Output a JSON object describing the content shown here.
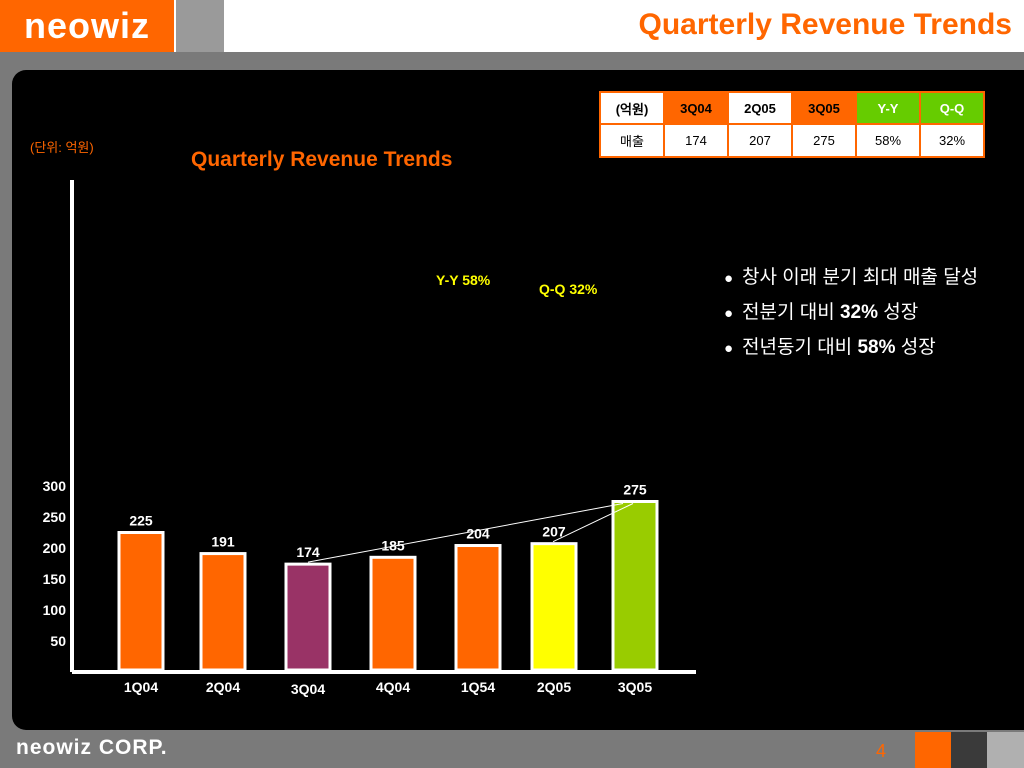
{
  "header": {
    "logo": "neowiz",
    "title": "Quarterly Revenue Trends"
  },
  "footer": {
    "logo": "neowiz CORP.",
    "page": "4"
  },
  "chart_data": {
    "type": "bar",
    "title": "Quarterly Revenue Trends",
    "unit_label": "(단위: 억원)",
    "categories": [
      "1Q04",
      "2Q04",
      "3Q04",
      "4Q04",
      "1Q54",
      "2Q05",
      "3Q05"
    ],
    "values": [
      225,
      191,
      174,
      185,
      204,
      207,
      275
    ],
    "value_labels": [
      "225",
      "191",
      "174",
      "185",
      "204",
      "207",
      "275"
    ],
    "bar_colors": [
      "#ff6600",
      "#ff6600",
      "#993366",
      "#ff6600",
      "#ff6600",
      "#ffff00",
      "#99cc00"
    ],
    "yticks": [
      "50",
      "100",
      "150",
      "200",
      "250",
      "300"
    ],
    "ylim": [
      0,
      300
    ],
    "annotations": {
      "yy": "Y-Y 58%",
      "qq": "Q-Q 32%"
    }
  },
  "table": {
    "headers": [
      "(억원)",
      "3Q04",
      "2Q05",
      "3Q05",
      "Y-Y",
      "Q-Q"
    ],
    "row": [
      "매출",
      "174",
      "207",
      "275",
      "58%",
      "32%"
    ]
  },
  "bullets": [
    {
      "pre": "창사 이래 분기 최대 매출 달성",
      "bold": "",
      "post": ""
    },
    {
      "pre": "전분기 대비 ",
      "bold": "32%",
      "post": " 성장"
    },
    {
      "pre": "전년동기 대비 ",
      "bold": "58%",
      "post": " 성장"
    }
  ]
}
